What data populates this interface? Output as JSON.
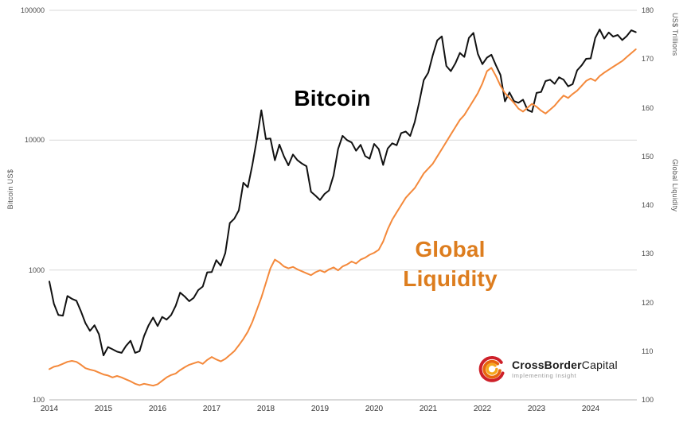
{
  "chart_data": {
    "type": "line",
    "title": "",
    "grid": "horizontal-only",
    "legend": "none (inline text annotations)",
    "x_start": 2014.0,
    "x_step": 0.0833333,
    "x_axis": {
      "ticks": [
        2014,
        2015,
        2016,
        2017,
        2018,
        2019,
        2020,
        2021,
        2022,
        2023,
        2024
      ],
      "range": [
        2014.0,
        2024.85
      ]
    },
    "left_axis": {
      "label": "Bitcoin US$",
      "scale": "log",
      "min": 100,
      "max": 100000,
      "ticks": [
        100000,
        10000,
        1000,
        100
      ]
    },
    "right_axis": {
      "labels": [
        "US$ Trillions",
        "Global Liquidity"
      ],
      "scale": "linear",
      "min": 100,
      "max": 180,
      "ticks": [
        180,
        170,
        160,
        150,
        140,
        130,
        120,
        110,
        100
      ]
    },
    "series": [
      {
        "name": "Bitcoin",
        "axis": "left",
        "color": "#111111",
        "width": 2,
        "values": [
          815,
          550,
          450,
          445,
          630,
          600,
          580,
          480,
          390,
          340,
          375,
          320,
          220,
          255,
          245,
          235,
          230,
          260,
          285,
          230,
          237,
          310,
          375,
          430,
          370,
          435,
          415,
          450,
          530,
          670,
          625,
          575,
          610,
          700,
          745,
          960,
          965,
          1190,
          1080,
          1350,
          2300,
          2480,
          2880,
          4700,
          4340,
          6450,
          10200,
          17000,
          10200,
          10300,
          7000,
          9250,
          7500,
          6400,
          7750,
          7000,
          6600,
          6300,
          4000,
          3740,
          3460,
          3850,
          4100,
          5350,
          8550,
          10800,
          10000,
          9600,
          8300,
          9200,
          7550,
          7200,
          9350,
          8550,
          6440,
          8620,
          9450,
          9140,
          11350,
          11650,
          10780,
          13800,
          19700,
          29000,
          33100,
          45200,
          58800,
          63000,
          37300,
          34000,
          39000,
          47000,
          43800,
          61300,
          67000,
          46200,
          38500,
          43200,
          45500,
          37700,
          31800,
          19900,
          23300,
          20000,
          19400,
          20500,
          17100,
          16500,
          23100,
          23500,
          28500,
          29200,
          27200,
          30500,
          29200,
          26000,
          27000,
          34500,
          37700,
          42300,
          42600,
          61200,
          71300,
          60600,
          67500,
          62700,
          64600,
          59000,
          63300,
          70200,
          68000
        ]
      },
      {
        "name": "Global Liquidity",
        "axis": "right",
        "color": "#F4893B",
        "width": 2,
        "values": [
          106.3,
          106.8,
          107.0,
          107.4,
          107.8,
          108.0,
          107.8,
          107.2,
          106.5,
          106.2,
          106.0,
          105.6,
          105.2,
          105.0,
          104.6,
          104.9,
          104.6,
          104.2,
          103.8,
          103.3,
          103.0,
          103.3,
          103.1,
          102.9,
          103.2,
          103.9,
          104.6,
          105.1,
          105.4,
          106.1,
          106.7,
          107.2,
          107.5,
          107.8,
          107.4,
          108.2,
          108.8,
          108.3,
          107.9,
          108.4,
          109.2,
          110.0,
          111.2,
          112.5,
          114.0,
          116.0,
          118.5,
          121.0,
          124.0,
          127.0,
          128.8,
          128.2,
          127.4,
          127.0,
          127.3,
          126.8,
          126.4,
          126.0,
          125.6,
          126.2,
          126.6,
          126.2,
          126.8,
          127.2,
          126.6,
          127.4,
          127.8,
          128.4,
          128.0,
          128.8,
          129.2,
          129.8,
          130.2,
          130.8,
          132.5,
          135.0,
          137.0,
          138.5,
          140.0,
          141.5,
          142.5,
          143.5,
          145.0,
          146.5,
          147.5,
          148.5,
          150.0,
          151.5,
          153.0,
          154.5,
          156.0,
          157.5,
          158.5,
          160.0,
          161.5,
          163.0,
          165.0,
          167.5,
          168.2,
          166.5,
          164.5,
          163.0,
          162.0,
          161.0,
          159.8,
          159.2,
          160.0,
          160.8,
          160.2,
          159.4,
          158.8,
          159.6,
          160.4,
          161.5,
          162.5,
          162.0,
          162.8,
          163.5,
          164.5,
          165.5,
          166.0,
          165.5,
          166.5,
          167.2,
          167.8,
          168.4,
          169.0,
          169.6,
          170.4,
          171.2,
          172.0
        ]
      }
    ],
    "annotations": [
      {
        "id": "bitcoin-label",
        "lines": [
          "Bitcoin"
        ],
        "color": "#000000"
      },
      {
        "id": "global-liquidity-label",
        "lines": [
          "Global",
          "Liquidity"
        ],
        "color": "#DD7D1E"
      }
    ],
    "colors": {
      "gridline": "#d9d9d9",
      "axis_line": "#b3b3b3",
      "tick_text": "#4a4a4a"
    }
  },
  "branding": {
    "name_bold": "CrossBorder",
    "name_regular": "Capital",
    "tagline": "Implementing Insight"
  }
}
